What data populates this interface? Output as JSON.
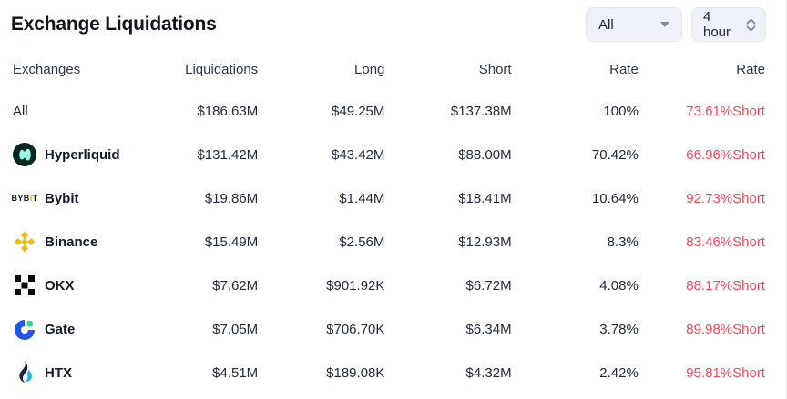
{
  "header": {
    "title": "Exchange Liquidations",
    "exchange_filter": {
      "value": "All"
    },
    "time_filter": {
      "value": "4 hour"
    }
  },
  "table": {
    "columns": [
      "Exchanges",
      "Liquidations",
      "Long",
      "Short",
      "Rate",
      "Rate"
    ],
    "rows": [
      {
        "exchange": "All",
        "icon": "none",
        "liquidations": "$186.63M",
        "long": "$49.25M",
        "short": "$137.38M",
        "rate": "100%",
        "rate_short": "73.61%Short"
      },
      {
        "exchange": "Hyperliquid",
        "icon": "hyperliquid",
        "liquidations": "$131.42M",
        "long": "$43.42M",
        "short": "$88.00M",
        "rate": "70.42%",
        "rate_short": "66.96%Short"
      },
      {
        "exchange": "Bybit",
        "icon": "bybit",
        "liquidations": "$19.86M",
        "long": "$1.44M",
        "short": "$18.41M",
        "rate": "10.64%",
        "rate_short": "92.73%Short"
      },
      {
        "exchange": "Binance",
        "icon": "binance",
        "liquidations": "$15.49M",
        "long": "$2.56M",
        "short": "$12.93M",
        "rate": "8.3%",
        "rate_short": "83.46%Short"
      },
      {
        "exchange": "OKX",
        "icon": "okx",
        "liquidations": "$7.62M",
        "long": "$901.92K",
        "short": "$6.72M",
        "rate": "4.08%",
        "rate_short": "88.17%Short"
      },
      {
        "exchange": "Gate",
        "icon": "gate",
        "liquidations": "$7.05M",
        "long": "$706.70K",
        "short": "$6.34M",
        "rate": "3.78%",
        "rate_short": "89.98%Short"
      },
      {
        "exchange": "HTX",
        "icon": "htx",
        "liquidations": "$4.51M",
        "long": "$189.08K",
        "short": "$4.32M",
        "rate": "2.42%",
        "rate_short": "95.81%Short"
      }
    ]
  },
  "colors": {
    "short_red": "#f5465c",
    "binance_yellow": "#f0b90b",
    "bybit_orange": "#f7a600",
    "gate_blue": "#2354e6",
    "gate_green": "#2fd695",
    "hyperliquid_dark": "#072723",
    "hyperliquid_mint": "#98fce4",
    "htx_navy": "#1b2342",
    "htx_blue": "#2daee4",
    "control_bg": "#eef1f8"
  }
}
